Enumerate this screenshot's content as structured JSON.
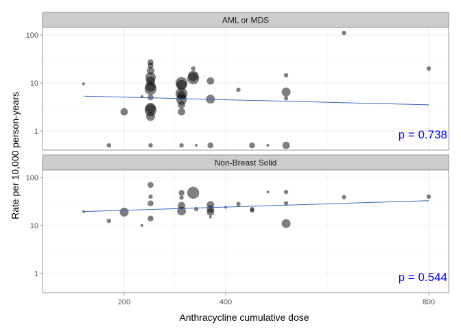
{
  "chart_data": {
    "type": "scatter",
    "xlabel": "Anthracycline cumulative dose",
    "ylabel": "Rate per 10,000 person-years",
    "xlim": [
      100,
      830
    ],
    "x_ticks": [
      200,
      400,
      800
    ],
    "x_tick_labels": [
      "200",
      "400",
      "800"
    ],
    "ylim": [
      0.35,
      150
    ],
    "y_scale": "log",
    "y_ticks": [
      1,
      10,
      100
    ],
    "y_tick_labels": [
      "1",
      "10",
      "100"
    ],
    "grid": true,
    "colors": {
      "points": "#000000",
      "fit_line": "#3366cc",
      "pvalue": "#0000ff",
      "strip_bg": "#cccccc",
      "grid": "#e6e6e6"
    },
    "panels": [
      {
        "strip_label": "AML or MDS",
        "pvalue_label": "p = 0.738",
        "fit": {
          "x": [
            120,
            800
          ],
          "y": [
            5.3,
            3.5
          ]
        },
        "points": [
          {
            "x": 120,
            "y": 9.6,
            "size": 1
          },
          {
            "x": 170,
            "y": 0.5,
            "size": 2
          },
          {
            "x": 200,
            "y": 2.5,
            "size": 4
          },
          {
            "x": 235,
            "y": 5.2,
            "size": 1
          },
          {
            "x": 252,
            "y": 27,
            "size": 3
          },
          {
            "x": 252,
            "y": 23,
            "size": 3
          },
          {
            "x": 252,
            "y": 18,
            "size": 4
          },
          {
            "x": 252,
            "y": 13,
            "size": 6
          },
          {
            "x": 252,
            "y": 11,
            "size": 5
          },
          {
            "x": 252,
            "y": 8.5,
            "size": 6
          },
          {
            "x": 252,
            "y": 7.5,
            "size": 7
          },
          {
            "x": 252,
            "y": 5,
            "size": 3
          },
          {
            "x": 252,
            "y": 3,
            "size": 6
          },
          {
            "x": 252,
            "y": 2.7,
            "size": 7
          },
          {
            "x": 252,
            "y": 2,
            "size": 5
          },
          {
            "x": 252,
            "y": 0.5,
            "size": 2
          },
          {
            "x": 313,
            "y": 10,
            "size": 7
          },
          {
            "x": 313,
            "y": 9,
            "size": 6
          },
          {
            "x": 313,
            "y": 6,
            "size": 7
          },
          {
            "x": 313,
            "y": 5.5,
            "size": 5
          },
          {
            "x": 313,
            "y": 4.5,
            "size": 6
          },
          {
            "x": 313,
            "y": 3.5,
            "size": 4
          },
          {
            "x": 313,
            "y": 2.5,
            "size": 4
          },
          {
            "x": 313,
            "y": 0.5,
            "size": 2
          },
          {
            "x": 336,
            "y": 20,
            "size": 2
          },
          {
            "x": 336,
            "y": 14,
            "size": 6
          },
          {
            "x": 336,
            "y": 12.5,
            "size": 7
          },
          {
            "x": 342,
            "y": 0.5,
            "size": 1
          },
          {
            "x": 370,
            "y": 11,
            "size": 4
          },
          {
            "x": 370,
            "y": 4.6,
            "size": 5
          },
          {
            "x": 370,
            "y": 0.5,
            "size": 3
          },
          {
            "x": 425,
            "y": 7.2,
            "size": 2
          },
          {
            "x": 452,
            "y": 0.5,
            "size": 3
          },
          {
            "x": 483,
            "y": 0.5,
            "size": 1
          },
          {
            "x": 519,
            "y": 14.5,
            "size": 2
          },
          {
            "x": 519,
            "y": 6.5,
            "size": 5
          },
          {
            "x": 519,
            "y": 4.8,
            "size": 2
          },
          {
            "x": 519,
            "y": 0.5,
            "size": 4
          },
          {
            "x": 633,
            "y": 110,
            "size": 2
          },
          {
            "x": 800,
            "y": 20,
            "size": 2
          }
        ]
      },
      {
        "strip_label": "Non-Breast Solid",
        "pvalue_label": "p = 0.544",
        "fit": {
          "x": [
            120,
            800
          ],
          "y": [
            19.5,
            33
          ]
        },
        "points": [
          {
            "x": 120,
            "y": 19.5,
            "size": 1
          },
          {
            "x": 170,
            "y": 12.5,
            "size": 2
          },
          {
            "x": 200,
            "y": 19,
            "size": 5
          },
          {
            "x": 235,
            "y": 10,
            "size": 1
          },
          {
            "x": 252,
            "y": 70,
            "size": 3
          },
          {
            "x": 252,
            "y": 40,
            "size": 2
          },
          {
            "x": 252,
            "y": 29,
            "size": 3
          },
          {
            "x": 252,
            "y": 14,
            "size": 3
          },
          {
            "x": 313,
            "y": 48,
            "size": 3
          },
          {
            "x": 313,
            "y": 38,
            "size": 2
          },
          {
            "x": 313,
            "y": 26,
            "size": 4
          },
          {
            "x": 313,
            "y": 20,
            "size": 5
          },
          {
            "x": 336,
            "y": 48,
            "size": 7
          },
          {
            "x": 342,
            "y": 22,
            "size": 2
          },
          {
            "x": 370,
            "y": 27,
            "size": 4
          },
          {
            "x": 370,
            "y": 22,
            "size": 4
          },
          {
            "x": 370,
            "y": 19,
            "size": 4
          },
          {
            "x": 370,
            "y": 15,
            "size": 1
          },
          {
            "x": 400,
            "y": 24,
            "size": 1
          },
          {
            "x": 425,
            "y": 28,
            "size": 2
          },
          {
            "x": 452,
            "y": 22,
            "size": 2
          },
          {
            "x": 452,
            "y": 20.5,
            "size": 2
          },
          {
            "x": 483,
            "y": 50,
            "size": 1
          },
          {
            "x": 519,
            "y": 50,
            "size": 2
          },
          {
            "x": 519,
            "y": 29,
            "size": 2
          },
          {
            "x": 519,
            "y": 11,
            "size": 5
          },
          {
            "x": 633,
            "y": 39,
            "size": 2
          },
          {
            "x": 800,
            "y": 40,
            "size": 2
          }
        ]
      }
    ]
  }
}
